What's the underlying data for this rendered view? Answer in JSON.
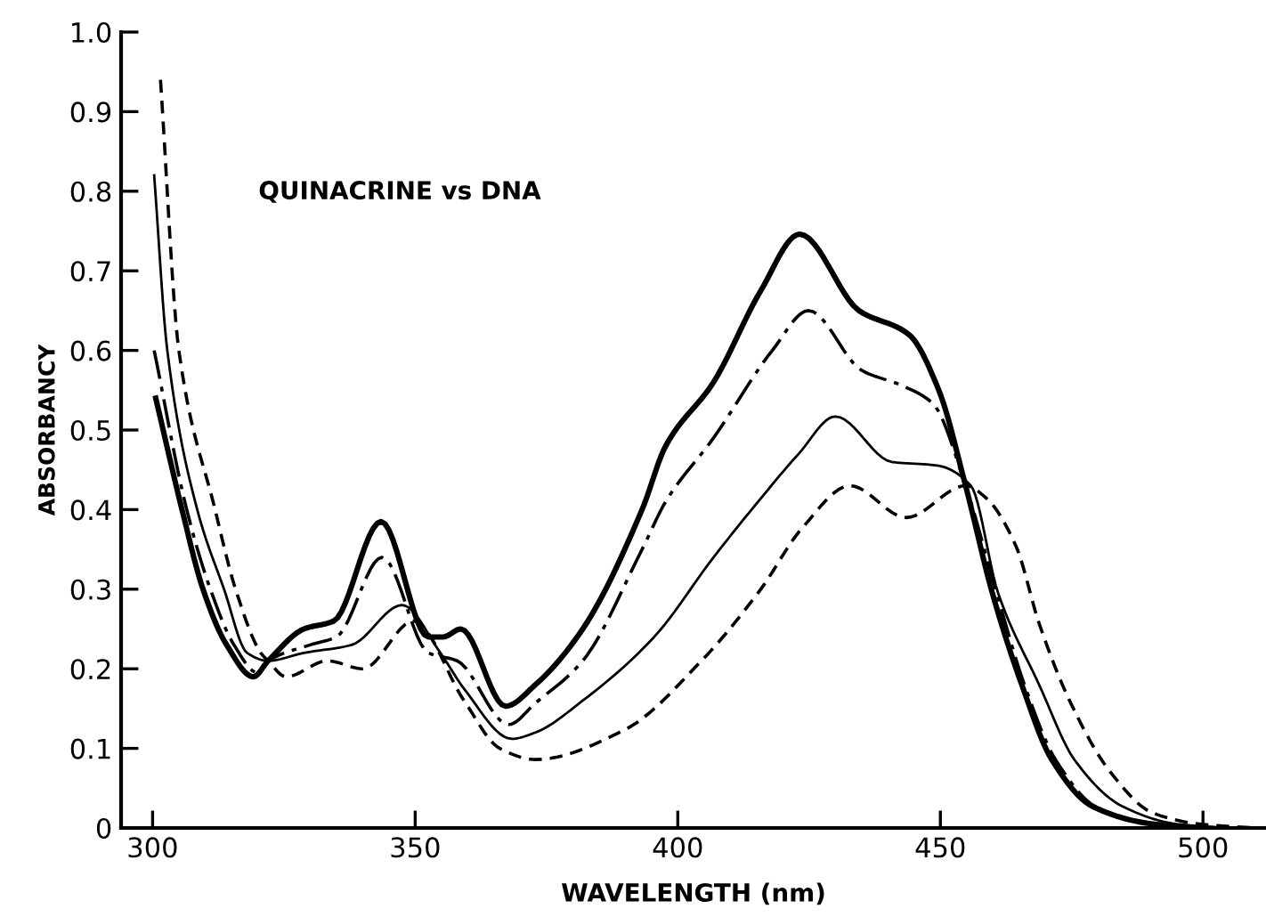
{
  "chart_data": {
    "type": "line",
    "xlabel": "WAVELENGTH (nm)",
    "ylabel": "ABSORBANCY",
    "annotations": [
      "QUINACRINE vs DNA"
    ],
    "xlim": [
      294,
      512
    ],
    "ylim": [
      0,
      1.0
    ],
    "xticks": [
      300,
      350,
      400,
      450,
      500
    ],
    "yticks": [
      0,
      0.1,
      0.2,
      0.3,
      0.4,
      0.5,
      0.6,
      0.7,
      0.8,
      0.9,
      {
        "value": 1.0,
        "label": "1.0"
      }
    ],
    "grid": false,
    "marker": "none",
    "series": [
      {
        "color": "#000000",
        "line_style": "solid",
        "x": [
          300.6,
          305.6,
          309.6,
          314.1,
          319.2,
          322,
          328.8,
          334.5,
          343.5,
          352.5,
          355.3,
          358.7,
          367.2,
          372.9,
          381.9,
          393.2,
          397.7,
          406.8,
          415.8,
          423.2,
          434.5,
          444,
          449.7,
          454.8,
          459.9,
          465.5,
          471.2,
          479,
          490.4,
          500
        ],
        "values": [
          0.54,
          0.4,
          0.3,
          0.23,
          0.19,
          0.21,
          0.25,
          0.26,
          0.385,
          0.24,
          0.24,
          0.25,
          0.153,
          0.18,
          0.25,
          0.4,
          0.48,
          0.56,
          0.675,
          0.746,
          0.65,
          0.62,
          0.55,
          0.43,
          0.295,
          0.18,
          0.086,
          0.027,
          0.005,
          0
        ]
      },
      {
        "color": "#000000",
        "line_style": "dashdot",
        "x": [
          300.3,
          306.5,
          311,
          315.5,
          320,
          322,
          330,
          335,
          343.7,
          352.5,
          358,
          367.8,
          372.9,
          381.9,
          393.2,
          397.7,
          406.8,
          418,
          424.9,
          435,
          443,
          448.6,
          454.8,
          460.5,
          466,
          472,
          480,
          491,
          500
        ],
        "values": [
          0.6,
          0.4,
          0.3,
          0.23,
          0.195,
          0.21,
          0.23,
          0.24,
          0.34,
          0.22,
          0.21,
          0.13,
          0.157,
          0.21,
          0.35,
          0.41,
          0.49,
          0.6,
          0.65,
          0.575,
          0.555,
          0.533,
          0.43,
          0.3,
          0.18,
          0.085,
          0.025,
          0.005,
          0
        ]
      },
      {
        "color": "#000000",
        "line_style": "solid",
        "x": [
          300.3,
          302.8,
          308.5,
          313.6,
          318,
          322,
          328.8,
          337.9,
          347.5,
          354.8,
          359.3,
          368.4,
          372.9,
          381.9,
          395.5,
          406.8,
          415.8,
          423,
          430,
          440.7,
          449.7,
          455.8,
          461,
          468.8,
          475.6,
          484.7,
          495,
          505
        ],
        "values": [
          0.82,
          0.6,
          0.4,
          0.3,
          0.22,
          0.21,
          0.22,
          0.23,
          0.28,
          0.22,
          0.175,
          0.112,
          0.12,
          0.16,
          0.24,
          0.34,
          0.414,
          0.47,
          0.517,
          0.46,
          0.455,
          0.43,
          0.295,
          0.18,
          0.085,
          0.027,
          0.005,
          0
        ]
      },
      {
        "color": "#000000",
        "line_style": "dashed",
        "x": [
          301.5,
          305,
          311.9,
          315.8,
          320.6,
          322,
          325.4,
          333.3,
          340,
          349.7,
          359.3,
          366.1,
          372.9,
          389.8,
          404.5,
          415.8,
          423.7,
          432.8,
          443.5,
          454.8,
          458.8,
          464.4,
          468.8,
          474.6,
          482.4,
          490.4,
          499.3,
          510
        ],
        "values": [
          0.94,
          0.6,
          0.4,
          0.3,
          0.22,
          0.21,
          0.19,
          0.21,
          0.2,
          0.26,
          0.16,
          0.1,
          0.086,
          0.123,
          0.21,
          0.3,
          0.377,
          0.43,
          0.39,
          0.43,
          0.414,
          0.354,
          0.257,
          0.16,
          0.07,
          0.019,
          0.005,
          0
        ]
      }
    ]
  }
}
